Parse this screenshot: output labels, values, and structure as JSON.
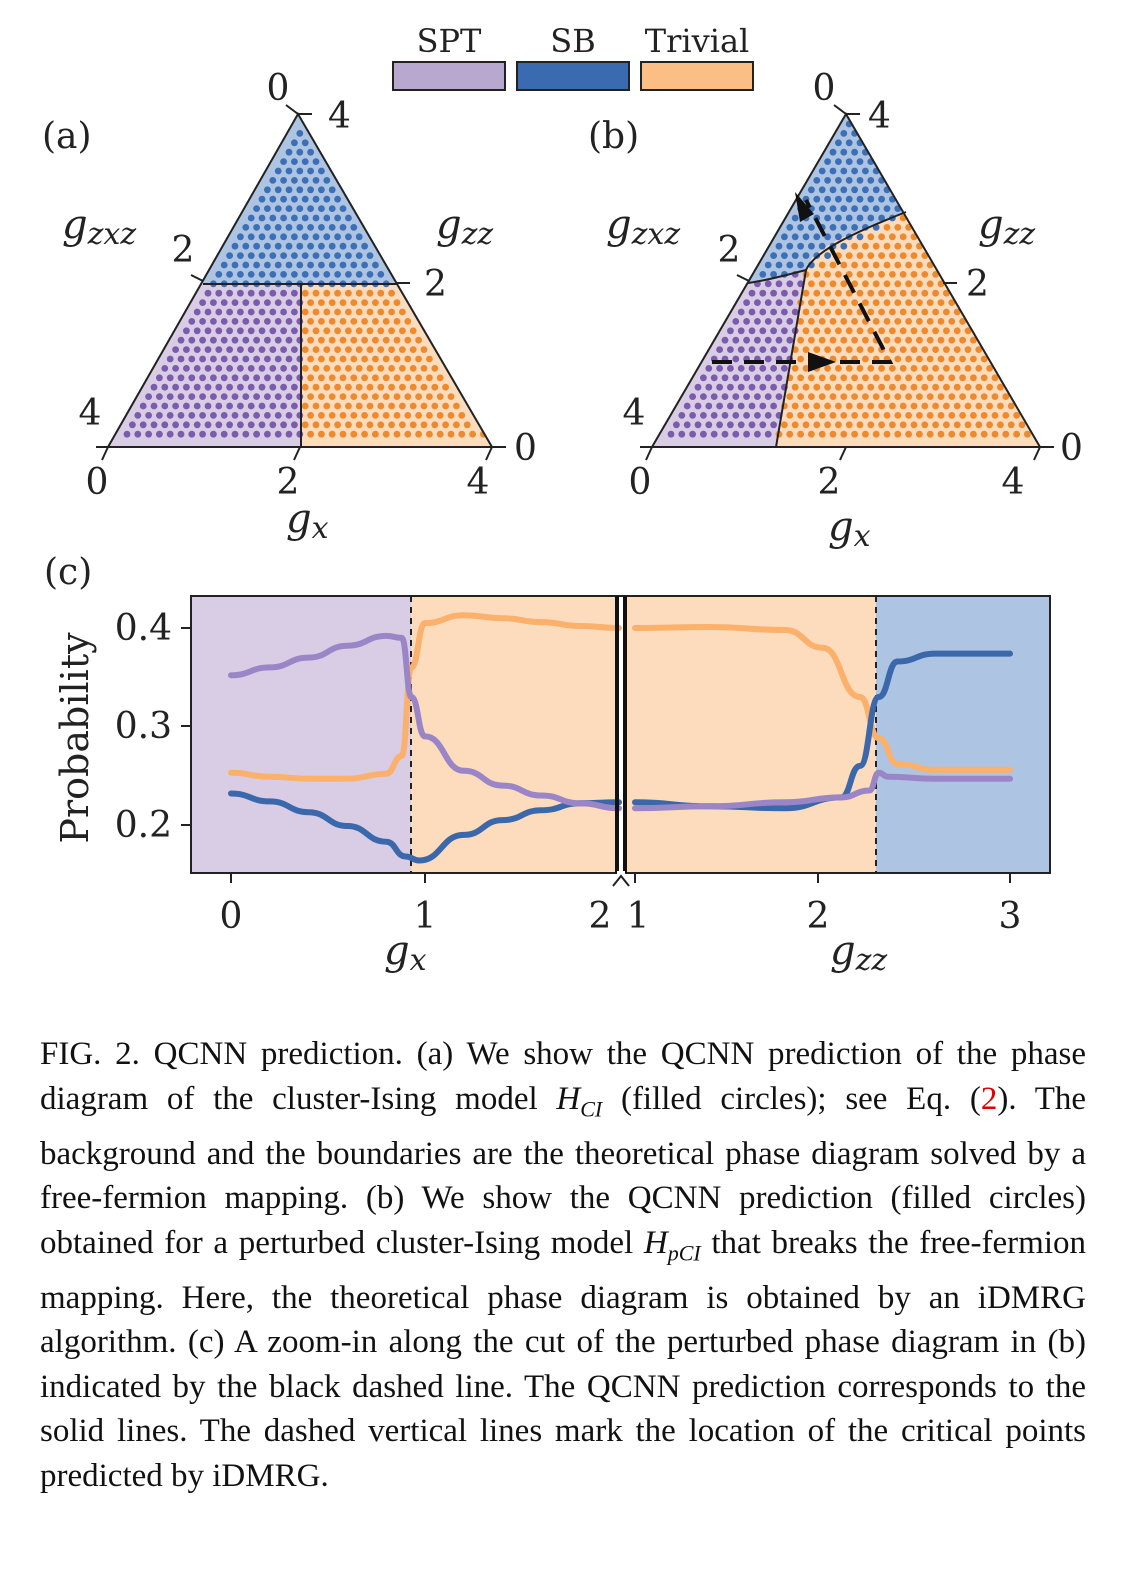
{
  "legend": {
    "items": [
      {
        "label": "SPT",
        "color": "#b8a7cf"
      },
      {
        "label": "SB",
        "color": "#3a6ab0"
      },
      {
        "label": "Trivial",
        "color": "#fbbf86"
      }
    ]
  },
  "colors": {
    "spt_fill": "#d9cde5",
    "spt_dot": "#7a5bac",
    "sb_fill": "#adc4e3",
    "sb_dot": "#3c6fb5",
    "triv_fill": "#fcdcbc",
    "triv_dot": "#ee8a2e",
    "line_spt": "#9a86c7",
    "line_sb": "#3b67ab",
    "line_triv": "#fbb06c"
  },
  "panel_a": {
    "label": "(a)",
    "left_axis_label": "g",
    "left_axis_sub": "zxz",
    "right_axis_label": "g",
    "right_axis_sub": "zz",
    "bottom_axis_label": "g",
    "bottom_axis_sub": "x",
    "bottom_ticks": [
      "0",
      "2",
      "4"
    ],
    "left_ticks": [
      "4",
      "2",
      "0"
    ],
    "right_ticks": [
      "4",
      "2",
      "0"
    ]
  },
  "panel_b": {
    "label": "(b)",
    "left_axis_label": "g",
    "left_axis_sub": "zxz",
    "right_axis_label": "g",
    "right_axis_sub": "zz",
    "bottom_axis_label": "g",
    "bottom_axis_sub": "x",
    "bottom_ticks": [
      "0",
      "2",
      "4"
    ],
    "left_ticks": [
      "4",
      "2",
      "0"
    ],
    "right_ticks": [
      "4",
      "2",
      "0"
    ]
  },
  "panel_c": {
    "label": "(c)",
    "ylabel": "Probability",
    "y_ticks": [
      "0.2",
      "0.3",
      "0.4"
    ],
    "x_ticks_left": [
      "0",
      "1",
      "2"
    ],
    "x_ticks_right": [
      "1",
      "2",
      "3"
    ],
    "xlabel_left": "g",
    "xlabel_left_sub": "x",
    "xlabel_right": "g",
    "xlabel_right_sub": "zz"
  },
  "chart_data": {
    "type": "line",
    "title": "",
    "ylabel": "Probability",
    "ylim": [
      0.15,
      0.43
    ],
    "segments": [
      {
        "xlabel": "gx",
        "xlim": [
          0,
          2
        ],
        "critical_point": 0.93
      },
      {
        "xlabel": "gzz",
        "xlim": [
          1,
          3
        ],
        "critical_point": 2.3
      }
    ],
    "series": [
      {
        "name": "SPT",
        "x_left": [
          0,
          0.2,
          0.4,
          0.6,
          0.8,
          0.88,
          0.93,
          1.0,
          1.2,
          1.4,
          1.6,
          1.8,
          2.0
        ],
        "y_left": [
          0.352,
          0.36,
          0.37,
          0.382,
          0.392,
          0.39,
          0.33,
          0.29,
          0.255,
          0.24,
          0.23,
          0.222,
          0.217
        ],
        "x_right": [
          1.0,
          1.4,
          1.8,
          2.1,
          2.25,
          2.3,
          2.35,
          2.6,
          3.0
        ],
        "y_right": [
          0.217,
          0.219,
          0.223,
          0.228,
          0.235,
          0.253,
          0.249,
          0.247,
          0.247
        ]
      },
      {
        "name": "SB",
        "x_left": [
          0,
          0.2,
          0.4,
          0.6,
          0.8,
          0.9,
          0.97,
          1.2,
          1.4,
          1.6,
          1.8,
          2.0
        ],
        "y_left": [
          0.232,
          0.224,
          0.213,
          0.199,
          0.183,
          0.168,
          0.164,
          0.19,
          0.205,
          0.215,
          0.222,
          0.223
        ],
        "x_right": [
          1.0,
          1.4,
          1.8,
          2.1,
          2.2,
          2.3,
          2.4,
          2.6,
          3.0
        ],
        "y_right": [
          0.223,
          0.219,
          0.217,
          0.228,
          0.26,
          0.33,
          0.366,
          0.374,
          0.374
        ]
      },
      {
        "name": "Trivial",
        "x_left": [
          0,
          0.2,
          0.4,
          0.6,
          0.8,
          0.88,
          0.93,
          1.0,
          1.2,
          1.4,
          1.6,
          1.8,
          2.0
        ],
        "y_left": [
          0.253,
          0.249,
          0.247,
          0.247,
          0.252,
          0.27,
          0.36,
          0.405,
          0.413,
          0.41,
          0.406,
          0.402,
          0.4
        ],
        "x_right": [
          1.0,
          1.4,
          1.8,
          2.0,
          2.2,
          2.3,
          2.4,
          2.6,
          3.0
        ],
        "y_right": [
          0.4,
          0.401,
          0.398,
          0.38,
          0.33,
          0.288,
          0.262,
          0.256,
          0.256
        ]
      }
    ]
  },
  "caption": {
    "p1": "FIG. 2.  QCNN prediction.  (a) We show the QCNN prediction of the phase diagram of the cluster-Ising model ",
    "H1": "H",
    "H1_sub": "CI",
    "p2": " (filled circles); see Eq. (",
    "eqref": "2",
    "p3": "). The background and the boundaries are the theoretical phase diagram solved by a free-fermion mapping. (b) We show the QCNN prediction (filled circles) obtained for a perturbed cluster-Ising model ",
    "H2": "H",
    "H2_sub": "pCI",
    "p4": " that breaks the free-fermion mapping.  Here, the theoretical phase diagram is obtained by an iDMRG algorithm.  (c) A zoom-in along the cut of the perturbed phase diagram in (b) indicated by the black dashed line. The QCNN prediction corresponds to the solid lines. The dashed vertical lines mark the location of the critical points predicted by iDMRG."
  }
}
